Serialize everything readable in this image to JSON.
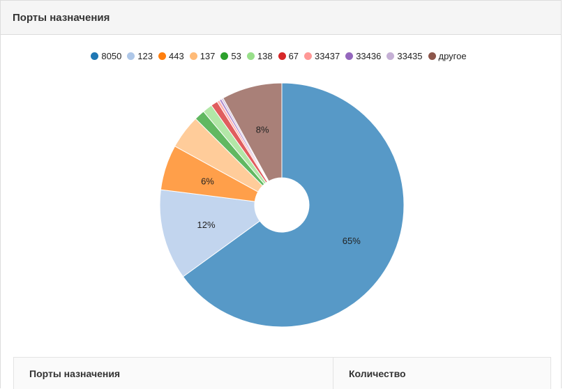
{
  "panel": {
    "title": "Порты назначения"
  },
  "table": {
    "headers": [
      "Порты назначения",
      "Количество"
    ]
  },
  "chart_data": {
    "type": "pie",
    "donut": true,
    "categories": [
      "8050",
      "123",
      "443",
      "137",
      "53",
      "138",
      "67",
      "33437",
      "33436",
      "33435",
      "другое"
    ],
    "values": [
      65,
      12,
      6,
      4.5,
      1.4,
      1.3,
      0.9,
      0.35,
      0.3,
      0.25,
      8
    ],
    "colors": [
      "#1f77b4",
      "#aec7e8",
      "#ff7f0e",
      "#ffbb78",
      "#2ca02c",
      "#98df8a",
      "#d62728",
      "#ff9896",
      "#9467bd",
      "#c5b0d5",
      "#8c564b"
    ],
    "labels": [
      "65%",
      "12%",
      "6%",
      "",
      "",
      "",
      "",
      "",
      "",
      "",
      "8%"
    ],
    "legend_position": "top"
  }
}
